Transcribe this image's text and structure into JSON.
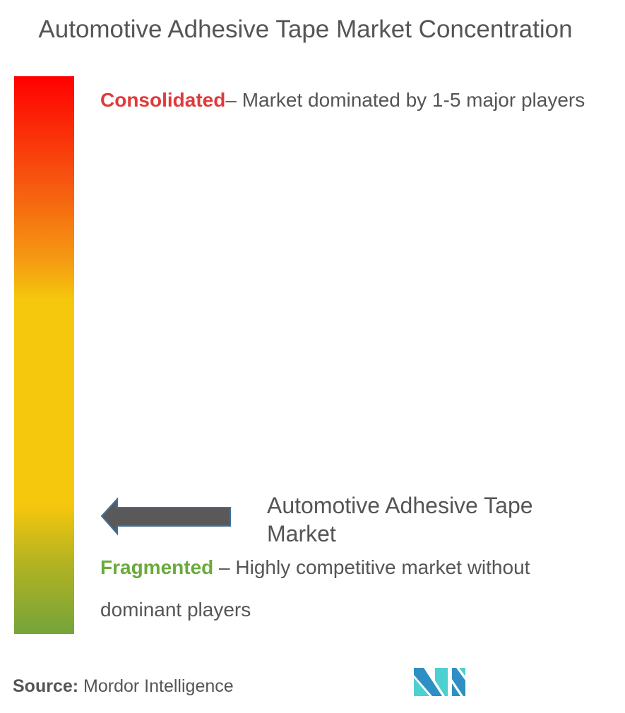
{
  "title": "Automotive Adhesive Tape Market Concentration",
  "scale": {
    "top": {
      "label": "Consolidated",
      "description": "– Market dominated by 1-5 major players",
      "color": "#e03a3a"
    },
    "bottom": {
      "label": "Fragmented",
      "description": " – Highly competitive market without dominant players",
      "color": "#6aaa3a"
    },
    "gradient_colors": [
      "#ff0000",
      "#f59a12",
      "#f5c70d",
      "#74a43a"
    ]
  },
  "marker": {
    "label": "Automotive Adhesive Tape Market",
    "icon": "left-arrow-icon",
    "position_fraction_from_bottom": 0.2
  },
  "source": {
    "prefix": "Source:",
    "text": " Mordor Intelligence"
  },
  "logo": {
    "name": "mordor-intelligence-logo",
    "colors": [
      "#2e8fc4",
      "#4ecfd0"
    ]
  }
}
